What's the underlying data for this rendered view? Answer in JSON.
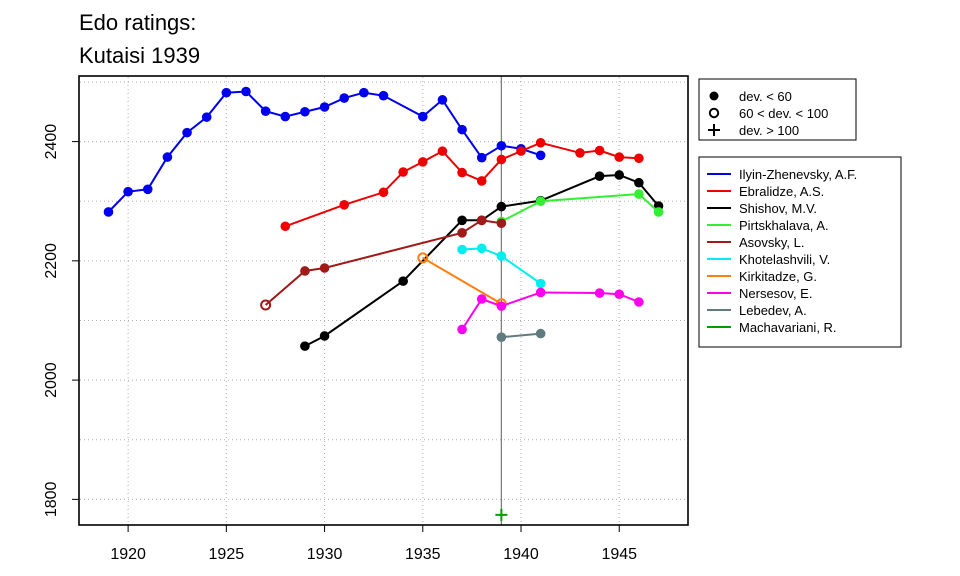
{
  "chart_data": {
    "type": "line",
    "title_lines": [
      "Edo ratings:",
      "Kutaisi 1939"
    ],
    "xlabel": "",
    "ylabel": "",
    "xlim": [
      1917.5,
      1948.5
    ],
    "ylim": [
      1757,
      2510
    ],
    "x_ticks": [
      1920,
      1925,
      1930,
      1935,
      1940,
      1945
    ],
    "y_ticks": [
      1800,
      2000,
      2200,
      2400
    ],
    "grid": true,
    "reference_line_x": 1939,
    "marker_legend": [
      {
        "symbol": "filled",
        "label": "dev. < 60"
      },
      {
        "symbol": "open",
        "label": "60 < dev. < 100"
      },
      {
        "symbol": "plus",
        "label": "dev. > 100"
      }
    ],
    "legend_placement": "right",
    "series": [
      {
        "name": "Ilyin-Zhenevsky, A.F.",
        "color": "#0000ee",
        "x": [
          1919,
          1920,
          1921,
          1922,
          1923,
          1924,
          1925,
          1926,
          1927,
          1928,
          1929,
          1930,
          1931,
          1932,
          1933,
          1935,
          1936,
          1937,
          1938,
          1939,
          1940,
          1941
        ],
        "y": [
          2282,
          2316,
          2320,
          2374,
          2415,
          2441,
          2482,
          2484,
          2451,
          2442,
          2450,
          2458,
          2473,
          2482,
          2477,
          2442,
          2470,
          2420,
          2373,
          2393,
          2388,
          2377
        ],
        "dev": [
          "s",
          "s",
          "s",
          "s",
          "s",
          "s",
          "s",
          "s",
          "s",
          "s",
          "s",
          "s",
          "s",
          "s",
          "s",
          "s",
          "s",
          "s",
          "s",
          "s",
          "s",
          "s"
        ]
      },
      {
        "name": "Ebralidze, A.S.",
        "color": "#ee0000",
        "x": [
          1928,
          1931,
          1933,
          1934,
          1935,
          1936,
          1937,
          1938,
          1939,
          1940,
          1941,
          1943,
          1944,
          1945,
          1946
        ],
        "y": [
          2258,
          2294,
          2315,
          2349,
          2366,
          2384,
          2348,
          2334,
          2370,
          2384,
          2398,
          2381,
          2385,
          2374,
          2372
        ],
        "dev": [
          "s",
          "s",
          "s",
          "s",
          "s",
          "s",
          "s",
          "s",
          "s",
          "s",
          "s",
          "s",
          "s",
          "s",
          "s"
        ]
      },
      {
        "name": "Shishov, M.V.",
        "color": "#000000",
        "x": [
          1929,
          1930,
          1934,
          1937,
          1938,
          1939,
          1941,
          1944,
          1945,
          1946,
          1947
        ],
        "y": [
          2057,
          2074,
          2166,
          2268,
          2268,
          2291,
          2301,
          2342,
          2344,
          2331,
          2292
        ],
        "dev": [
          "s",
          "s",
          "s",
          "s",
          "s",
          "s",
          "s",
          "s",
          "s",
          "s",
          "s"
        ]
      },
      {
        "name": "Pirtskhalava, A.",
        "color": "#33ee33",
        "x": [
          1939,
          1941,
          1946,
          1947
        ],
        "y": [
          2266,
          2300,
          2312,
          2282
        ],
        "dev": [
          "s",
          "s",
          "s",
          "s"
        ]
      },
      {
        "name": "Asovsky, L.",
        "color": "#a01a1a",
        "x": [
          1927,
          1929,
          1930,
          1937,
          1938,
          1939
        ],
        "y": [
          2126,
          2183,
          2188,
          2247,
          2268,
          2263
        ],
        "dev": [
          "m",
          "s",
          "s",
          "s",
          "s",
          "s"
        ]
      },
      {
        "name": "Khotelashvili, V.",
        "color": "#00eeee",
        "x": [
          1937,
          1938,
          1939,
          1941
        ],
        "y": [
          2219,
          2221,
          2208,
          2162
        ],
        "dev": [
          "s",
          "s",
          "s",
          "s"
        ]
      },
      {
        "name": "Kirkitadze, G.",
        "color": "#ff7f0e",
        "x": [
          1935,
          1939
        ],
        "y": [
          2205,
          2128
        ],
        "dev": [
          "m",
          "m"
        ]
      },
      {
        "name": "Nersesov, E.",
        "color": "#ff00ee",
        "x": [
          1937,
          1938,
          1939,
          1941,
          1944,
          1945,
          1946
        ],
        "y": [
          2085,
          2136,
          2124,
          2147,
          2146,
          2144,
          2131
        ],
        "dev": [
          "s",
          "s",
          "s",
          "s",
          "s",
          "s",
          "s"
        ]
      },
      {
        "name": "Lebedev, A.",
        "color": "#607b80",
        "x": [
          1939,
          1941
        ],
        "y": [
          2072,
          2078
        ],
        "dev": [
          "s",
          "s"
        ]
      },
      {
        "name": "Machavariani, R.",
        "color": "#009e00",
        "x": [
          1939
        ],
        "y": [
          1774
        ],
        "dev": [
          "l"
        ]
      }
    ]
  }
}
